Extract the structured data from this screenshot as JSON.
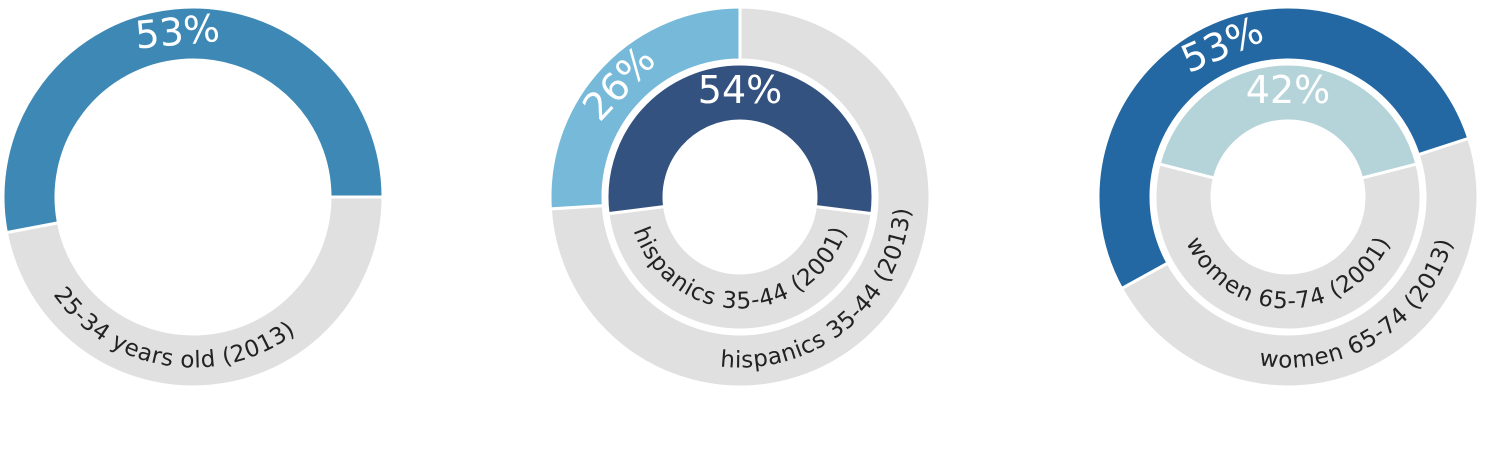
{
  "chart_data": [
    {
      "type": "donut",
      "rest_color": "#e0e0e0",
      "series": [
        {
          "name": "25-34 years old (2013)",
          "color": "#3d88b5",
          "values": [
            53
          ],
          "value_labels": [
            "53%"
          ]
        }
      ]
    },
    {
      "type": "donut",
      "rest_color": "#e0e0e0",
      "series": [
        {
          "name": "hispanics 35-44 (2013)",
          "color": "#77b9d9",
          "values": [
            26
          ],
          "value_labels": [
            "26%"
          ]
        },
        {
          "name": "hispanics 35-44 (2001)",
          "color": "#34527f",
          "values": [
            54
          ],
          "value_labels": [
            "54%"
          ]
        }
      ]
    },
    {
      "type": "donut",
      "rest_color": "#e0e0e0",
      "series": [
        {
          "name": "women 65-74 (2013)",
          "color": "#2368a2",
          "values": [
            53
          ],
          "value_labels": [
            "53%"
          ]
        },
        {
          "name": "women 65-74 (2001)",
          "color": "#b5d4da",
          "values": [
            42
          ],
          "value_labels": [
            "42%"
          ]
        }
      ]
    }
  ]
}
